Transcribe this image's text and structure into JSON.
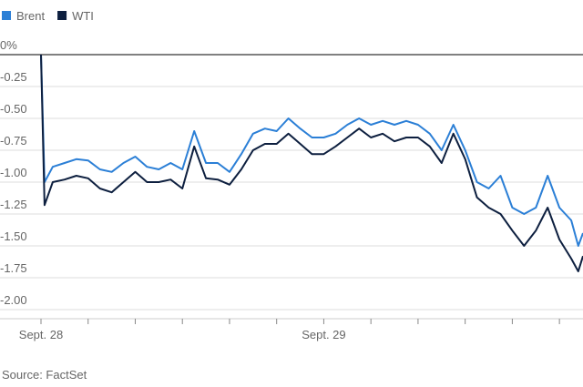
{
  "chart_data": {
    "type": "line",
    "source": "Source: FactSet",
    "x": [
      0,
      0.3,
      1,
      2,
      3,
      4,
      5,
      6,
      7,
      8,
      9,
      10,
      11,
      12,
      13,
      14,
      15,
      16,
      17,
      18,
      19,
      20,
      21,
      22,
      23,
      24,
      25,
      26,
      27,
      28,
      29,
      30,
      31,
      32,
      33,
      34,
      35,
      36,
      37,
      38,
      39,
      40,
      41,
      42,
      43,
      44,
      45,
      45.6,
      46
    ],
    "series": [
      {
        "name": "Brent",
        "color": "#2b7fd6",
        "values": [
          0,
          -1.0,
          -0.88,
          -0.85,
          -0.82,
          -0.83,
          -0.9,
          -0.92,
          -0.85,
          -0.8,
          -0.88,
          -0.9,
          -0.85,
          -0.9,
          -0.6,
          -0.85,
          -0.85,
          -0.92,
          -0.78,
          -0.62,
          -0.58,
          -0.6,
          -0.5,
          -0.58,
          -0.65,
          -0.65,
          -0.62,
          -0.55,
          -0.5,
          -0.55,
          -0.52,
          -0.55,
          -0.52,
          -0.55,
          -0.62,
          -0.75,
          -0.55,
          -0.75,
          -1.0,
          -1.05,
          -0.95,
          -1.2,
          -1.25,
          -1.2,
          -0.95,
          -1.2,
          -1.3,
          -1.5,
          -1.4
        ]
      },
      {
        "name": "WTI",
        "color": "#0d1f3f",
        "values": [
          0,
          -1.18,
          -1.0,
          -0.98,
          -0.95,
          -0.97,
          -1.05,
          -1.08,
          -1.0,
          -0.92,
          -1.0,
          -1.0,
          -0.98,
          -1.05,
          -0.72,
          -0.97,
          -0.98,
          -1.02,
          -0.9,
          -0.75,
          -0.7,
          -0.7,
          -0.62,
          -0.7,
          -0.78,
          -0.78,
          -0.72,
          -0.65,
          -0.58,
          -0.65,
          -0.62,
          -0.68,
          -0.65,
          -0.65,
          -0.72,
          -0.85,
          -0.62,
          -0.82,
          -1.12,
          -1.2,
          -1.25,
          -1.38,
          -1.5,
          -1.38,
          -1.2,
          -1.45,
          -1.6,
          -1.7,
          -1.58
        ]
      }
    ],
    "xlim": [
      0,
      46
    ],
    "xticks": [
      {
        "value": 0,
        "label": "Sept. 28"
      },
      {
        "value": 24,
        "label": "Sept. 29"
      }
    ],
    "xminorticks": [
      4,
      8,
      12,
      16,
      20,
      28,
      32,
      36,
      40,
      44
    ],
    "ylim": [
      -2,
      0
    ],
    "yticks": [
      {
        "value": 0,
        "label": "0%"
      },
      -0.25,
      {
        "value": -0.5,
        "label": "-0.50"
      },
      -0.75,
      {
        "value": -1,
        "label": "-1.00"
      },
      -1.25,
      {
        "value": -1.5,
        "label": "-1.50"
      },
      -1.75,
      {
        "value": -2,
        "label": "-2.00"
      }
    ],
    "grid": true
  }
}
